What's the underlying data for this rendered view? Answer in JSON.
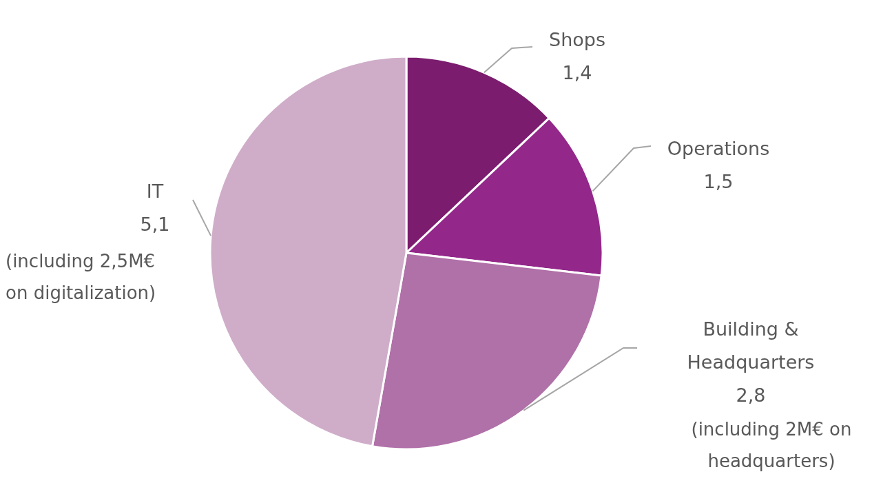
{
  "chart_data": {
    "type": "pie",
    "categories": [
      "Shops",
      "Operations",
      "Building & Headquarters",
      "IT"
    ],
    "values": [
      1.4,
      1.5,
      2.8,
      5.1
    ],
    "value_labels": [
      "1,4",
      "1,5",
      "2,8",
      "5,1"
    ],
    "colors": [
      "#7b1c6e",
      "#93278a",
      "#b070a8",
      "#cfadc9"
    ],
    "annotations": [
      "(including 2,5M€ on digitalization)",
      "(including 2M€ on headquarters)"
    ]
  }
}
